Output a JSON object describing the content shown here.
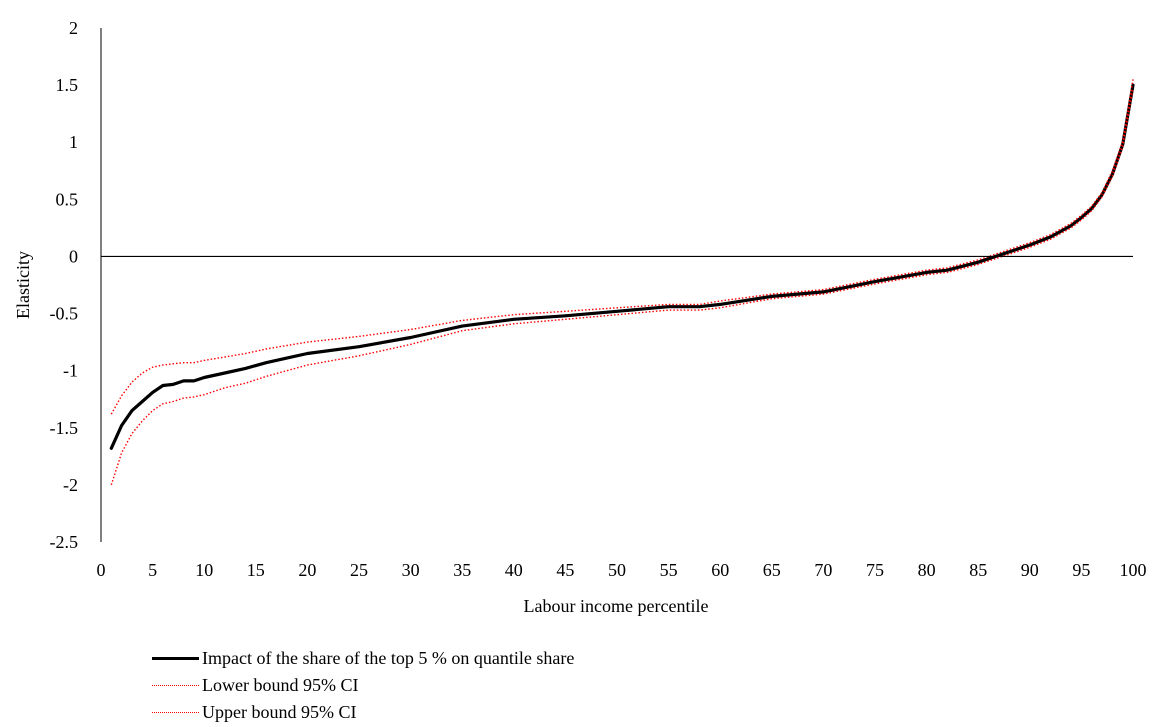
{
  "chart_data": {
    "type": "line",
    "title": "",
    "xlabel": "Labour income percentile",
    "ylabel": "Elasticity",
    "xlim": [
      0,
      100
    ],
    "ylim": [
      -2.5,
      2
    ],
    "xticks": [
      0,
      5,
      10,
      15,
      20,
      25,
      30,
      35,
      40,
      45,
      50,
      55,
      60,
      65,
      70,
      75,
      80,
      85,
      90,
      95,
      100
    ],
    "yticks": [
      2,
      1.5,
      1,
      0.5,
      0,
      -0.5,
      -1,
      -1.5,
      -2,
      -2.5
    ],
    "ytick_labels": [
      "2",
      "1.5",
      "1",
      "0.5",
      "0",
      "-0.5",
      "-1",
      "-1.5",
      "-2",
      "-2.5"
    ],
    "grid": false,
    "zero_line": true,
    "legend_position": "bottom",
    "series": [
      {
        "name": "Impact of the share of the top 5 % on quantile share",
        "color": "#000000",
        "style": "solid",
        "x": [
          1,
          2,
          3,
          4,
          5,
          6,
          7,
          8,
          9,
          10,
          12,
          14,
          16,
          18,
          20,
          25,
          30,
          35,
          40,
          45,
          50,
          55,
          58,
          60,
          65,
          70,
          75,
          80,
          82,
          85,
          88,
          90,
          92,
          94,
          95,
          96,
          97,
          98,
          99,
          100
        ],
        "values": [
          -1.68,
          -1.48,
          -1.35,
          -1.27,
          -1.19,
          -1.13,
          -1.12,
          -1.09,
          -1.09,
          -1.06,
          -1.02,
          -0.98,
          -0.93,
          -0.89,
          -0.85,
          -0.79,
          -0.71,
          -0.61,
          -0.55,
          -0.52,
          -0.48,
          -0.44,
          -0.44,
          -0.42,
          -0.35,
          -0.31,
          -0.22,
          -0.14,
          -0.12,
          -0.05,
          0.04,
          0.1,
          0.17,
          0.27,
          0.34,
          0.42,
          0.54,
          0.72,
          0.98,
          1.5
        ]
      },
      {
        "name": "Lower bound 95% CI",
        "color": "#ff0000",
        "style": "dotted",
        "x": [
          1,
          2,
          3,
          4,
          5,
          6,
          7,
          8,
          9,
          10,
          12,
          14,
          16,
          18,
          20,
          25,
          30,
          35,
          40,
          45,
          50,
          55,
          58,
          60,
          65,
          70,
          75,
          80,
          82,
          85,
          88,
          90,
          92,
          94,
          95,
          96,
          97,
          98,
          99,
          100
        ],
        "values": [
          -2.0,
          -1.72,
          -1.55,
          -1.44,
          -1.35,
          -1.29,
          -1.27,
          -1.24,
          -1.23,
          -1.21,
          -1.15,
          -1.11,
          -1.05,
          -1.0,
          -0.95,
          -0.87,
          -0.77,
          -0.65,
          -0.59,
          -0.55,
          -0.51,
          -0.47,
          -0.47,
          -0.45,
          -0.37,
          -0.33,
          -0.24,
          -0.16,
          -0.14,
          -0.07,
          0.02,
          0.08,
          0.15,
          0.25,
          0.32,
          0.4,
          0.52,
          0.7,
          0.96,
          1.47
        ]
      },
      {
        "name": "Upper bound 95% CI",
        "color": "#ff0000",
        "style": "dotted",
        "x": [
          1,
          2,
          3,
          4,
          5,
          6,
          7,
          8,
          9,
          10,
          12,
          14,
          16,
          18,
          20,
          25,
          30,
          35,
          40,
          45,
          50,
          55,
          58,
          60,
          65,
          70,
          75,
          80,
          82,
          85,
          88,
          90,
          92,
          94,
          95,
          96,
          97,
          98,
          99,
          100
        ],
        "values": [
          -1.38,
          -1.22,
          -1.1,
          -1.02,
          -0.97,
          -0.95,
          -0.94,
          -0.93,
          -0.93,
          -0.91,
          -0.88,
          -0.85,
          -0.81,
          -0.78,
          -0.75,
          -0.7,
          -0.64,
          -0.56,
          -0.51,
          -0.48,
          -0.45,
          -0.42,
          -0.42,
          -0.39,
          -0.33,
          -0.29,
          -0.2,
          -0.12,
          -0.1,
          -0.03,
          0.06,
          0.12,
          0.19,
          0.29,
          0.36,
          0.44,
          0.56,
          0.75,
          1.01,
          1.55
        ]
      }
    ]
  }
}
